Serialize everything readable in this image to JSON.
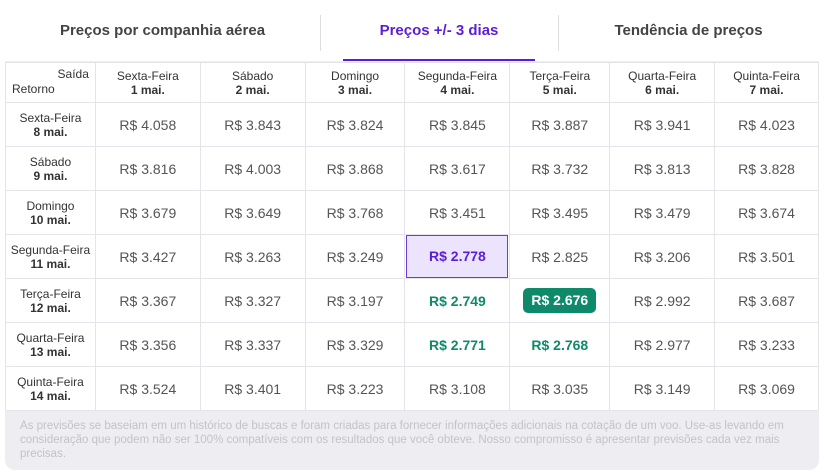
{
  "tabs": [
    "Preços por companhia aérea",
    "Preços +/- 3 dias",
    "Tendência de preços"
  ],
  "table": {
    "corner": {
      "departure": "Saída",
      "return": "Retorno"
    },
    "columns": [
      {
        "day": "Sexta-Feira",
        "date": "1 mai."
      },
      {
        "day": "Sábado",
        "date": "2 mai."
      },
      {
        "day": "Domingo",
        "date": "3 mai."
      },
      {
        "day": "Segunda-Feira",
        "date": "4 mai."
      },
      {
        "day": "Terça-Feira",
        "date": "5 mai."
      },
      {
        "day": "Quarta-Feira",
        "date": "6 mai."
      },
      {
        "day": "Quinta-Feira",
        "date": "7 mai."
      }
    ],
    "rows": [
      {
        "day": "Sexta-Feira",
        "date": "8 mai.",
        "prices": [
          "R$ 4.058",
          "R$ 3.843",
          "R$ 3.824",
          "R$ 3.845",
          "R$ 3.887",
          "R$ 3.941",
          "R$ 4.023"
        ]
      },
      {
        "day": "Sábado",
        "date": "9 mai.",
        "prices": [
          "R$ 3.816",
          "R$ 4.003",
          "R$ 3.868",
          "R$ 3.617",
          "R$ 3.732",
          "R$ 3.813",
          "R$ 3.828"
        ]
      },
      {
        "day": "Domingo",
        "date": "10 mai.",
        "prices": [
          "R$ 3.679",
          "R$ 3.649",
          "R$ 3.768",
          "R$ 3.451",
          "R$ 3.495",
          "R$ 3.479",
          "R$ 3.674"
        ]
      },
      {
        "day": "Segunda-Feira",
        "date": "11 mai.",
        "prices": [
          "R$ 3.427",
          "R$ 3.263",
          "R$ 3.249",
          "R$ 2.778",
          "R$ 2.825",
          "R$ 3.206",
          "R$ 3.501"
        ]
      },
      {
        "day": "Terça-Feira",
        "date": "12 mai.",
        "prices": [
          "R$ 3.367",
          "R$ 3.327",
          "R$ 3.197",
          "R$ 2.749",
          "R$ 2.676",
          "R$ 2.992",
          "R$ 3.687"
        ]
      },
      {
        "day": "Quarta-Feira",
        "date": "13 mai.",
        "prices": [
          "R$ 3.356",
          "R$ 3.337",
          "R$ 3.329",
          "R$ 2.771",
          "R$ 2.768",
          "R$ 2.977",
          "R$ 3.233"
        ]
      },
      {
        "day": "Quinta-Feira",
        "date": "14 mai.",
        "prices": [
          "R$ 3.524",
          "R$ 3.401",
          "R$ 3.223",
          "R$ 3.108",
          "R$ 3.035",
          "R$ 3.149",
          "R$ 3.069"
        ]
      }
    ]
  },
  "footer": "As previsões se baseiam em um histórico de buscas e foram criadas para fornecer informações adicionais na cotação de um voo. Use-as levando em consideração que podem não ser 100% compatíveis com os resultados que você obteve. Nosso compromisso é apresentar previsões cada vez mais precisas."
}
